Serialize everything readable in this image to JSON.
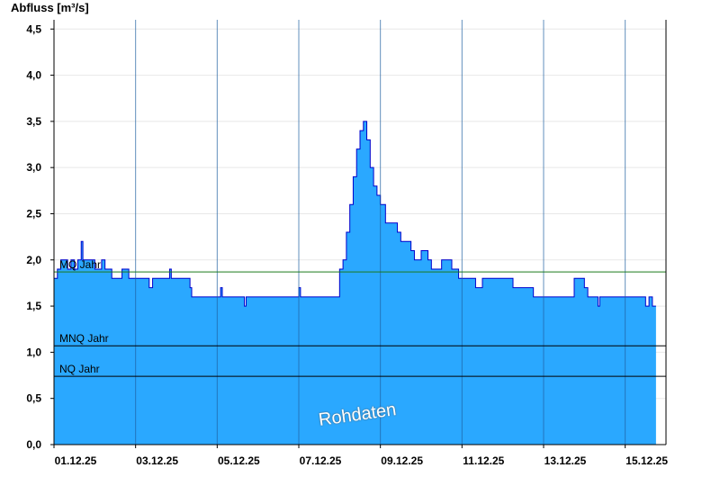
{
  "chart_data": {
    "type": "area",
    "ylabel": "Abfluss [m³/s]",
    "ylim": [
      0,
      4.6
    ],
    "xlim": [
      "2025-12-01T00:00",
      "2025-12-16T00:00"
    ],
    "grid": true,
    "y_ticks": [
      "0,0",
      "0,5",
      "1,0",
      "1,5",
      "2,0",
      "2,5",
      "3,0",
      "3,5",
      "4,0",
      "4,5"
    ],
    "y_tick_values": [
      0,
      0.5,
      1.0,
      1.5,
      2.0,
      2.5,
      3.0,
      3.5,
      4.0,
      4.5
    ],
    "x_ticks": [
      "01.12.25",
      "03.12.25",
      "05.12.25",
      "07.12.25",
      "09.12.25",
      "11.12.25",
      "13.12.25",
      "15.12.25"
    ],
    "x_tick_dates": [
      "2025-12-01T00:00",
      "2025-12-03T00:00",
      "2025-12-05T00:00",
      "2025-12-07T00:00",
      "2025-12-09T00:00",
      "2025-12-11T00:00",
      "2025-12-13T00:00",
      "2025-12-15T00:00"
    ],
    "reference_lines": [
      {
        "label": "MQ Jahr",
        "value": 1.87,
        "color": "#1a7a1a"
      },
      {
        "label": "MNQ Jahr",
        "value": 1.07,
        "color": "#000000"
      },
      {
        "label": "NQ Jahr",
        "value": 0.74,
        "color": "#000000"
      }
    ],
    "watermark": "Rohdaten",
    "series": [
      {
        "fill_color": "#2aa8ff",
        "line_color": "#0000cc",
        "points": [
          [
            "2025-12-01T00:00",
            1.8
          ],
          [
            "2025-12-01T02:00",
            1.9
          ],
          [
            "2025-12-01T04:00",
            2.0
          ],
          [
            "2025-12-01T08:00",
            1.9
          ],
          [
            "2025-12-01T10:00",
            2.0
          ],
          [
            "2025-12-01T12:00",
            1.9
          ],
          [
            "2025-12-01T14:00",
            2.0
          ],
          [
            "2025-12-01T16:00",
            2.2
          ],
          [
            "2025-12-01T17:00",
            2.0
          ],
          [
            "2025-12-01T20:00",
            2.0
          ],
          [
            "2025-12-02T00:00",
            1.9
          ],
          [
            "2025-12-02T04:00",
            2.0
          ],
          [
            "2025-12-02T06:00",
            1.9
          ],
          [
            "2025-12-02T10:00",
            1.8
          ],
          [
            "2025-12-02T14:00",
            1.8
          ],
          [
            "2025-12-02T16:00",
            1.9
          ],
          [
            "2025-12-02T20:00",
            1.8
          ],
          [
            "2025-12-03T00:00",
            1.8
          ],
          [
            "2025-12-03T08:00",
            1.7
          ],
          [
            "2025-12-03T10:00",
            1.8
          ],
          [
            "2025-12-03T20:00",
            1.9
          ],
          [
            "2025-12-03T21:00",
            1.8
          ],
          [
            "2025-12-04T06:00",
            1.8
          ],
          [
            "2025-12-04T08:00",
            1.7
          ],
          [
            "2025-12-04T09:00",
            1.6
          ],
          [
            "2025-12-04T14:00",
            1.6
          ],
          [
            "2025-12-05T00:00",
            1.6
          ],
          [
            "2025-12-05T02:00",
            1.7
          ],
          [
            "2025-12-05T03:00",
            1.6
          ],
          [
            "2025-12-05T16:00",
            1.5
          ],
          [
            "2025-12-05T17:00",
            1.6
          ],
          [
            "2025-12-06T12:00",
            1.6
          ],
          [
            "2025-12-06T23:00",
            1.6
          ],
          [
            "2025-12-07T00:00",
            1.7
          ],
          [
            "2025-12-07T01:00",
            1.6
          ],
          [
            "2025-12-07T22:00",
            1.6
          ],
          [
            "2025-12-08T00:00",
            1.9
          ],
          [
            "2025-12-08T02:00",
            2.0
          ],
          [
            "2025-12-08T04:00",
            2.3
          ],
          [
            "2025-12-08T06:00",
            2.6
          ],
          [
            "2025-12-08T08:00",
            2.9
          ],
          [
            "2025-12-08T10:00",
            3.2
          ],
          [
            "2025-12-08T12:00",
            3.4
          ],
          [
            "2025-12-08T14:00",
            3.5
          ],
          [
            "2025-12-08T16:00",
            3.3
          ],
          [
            "2025-12-08T18:00",
            3.0
          ],
          [
            "2025-12-08T20:00",
            2.8
          ],
          [
            "2025-12-08T22:00",
            2.7
          ],
          [
            "2025-12-09T00:00",
            2.6
          ],
          [
            "2025-12-09T03:00",
            2.4
          ],
          [
            "2025-12-09T08:00",
            2.4
          ],
          [
            "2025-12-09T10:00",
            2.3
          ],
          [
            "2025-12-09T12:00",
            2.2
          ],
          [
            "2025-12-09T18:00",
            2.1
          ],
          [
            "2025-12-09T20:00",
            2.0
          ],
          [
            "2025-12-10T00:00",
            2.1
          ],
          [
            "2025-12-10T04:00",
            2.0
          ],
          [
            "2025-12-10T06:00",
            1.9
          ],
          [
            "2025-12-10T12:00",
            2.0
          ],
          [
            "2025-12-10T18:00",
            1.9
          ],
          [
            "2025-12-10T22:00",
            1.8
          ],
          [
            "2025-12-11T00:00",
            1.8
          ],
          [
            "2025-12-11T08:00",
            1.7
          ],
          [
            "2025-12-11T12:00",
            1.8
          ],
          [
            "2025-12-12T00:00",
            1.8
          ],
          [
            "2025-12-12T06:00",
            1.7
          ],
          [
            "2025-12-12T12:00",
            1.7
          ],
          [
            "2025-12-12T18:00",
            1.6
          ],
          [
            "2025-12-13T00:00",
            1.6
          ],
          [
            "2025-12-13T16:00",
            1.6
          ],
          [
            "2025-12-13T18:00",
            1.8
          ],
          [
            "2025-12-14T00:00",
            1.7
          ],
          [
            "2025-12-14T02:00",
            1.6
          ],
          [
            "2025-12-14T08:00",
            1.5
          ],
          [
            "2025-12-14T09:00",
            1.6
          ],
          [
            "2025-12-15T00:00",
            1.6
          ],
          [
            "2025-12-15T06:00",
            1.6
          ],
          [
            "2025-12-15T12:00",
            1.5
          ],
          [
            "2025-12-15T14:00",
            1.6
          ],
          [
            "2025-12-15T16:00",
            1.5
          ]
        ]
      }
    ]
  }
}
